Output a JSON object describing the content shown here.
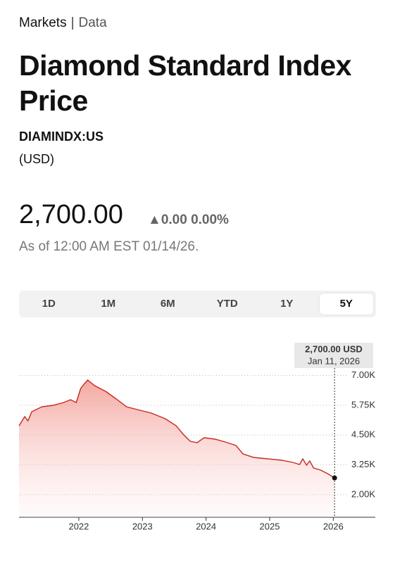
{
  "breadcrumb": [
    "Markets",
    "Data"
  ],
  "title": "Diamond Standard Index Price",
  "ticker": "DIAMINDX:US",
  "currency": "(USD)",
  "price": "2,700.00",
  "change": "0.00",
  "change_percent": "0.00%",
  "as_of": "As of 12:00 AM EST 01/14/26.",
  "tabs": [
    "1D",
    "1M",
    "6M",
    "YTD",
    "1Y",
    "5Y"
  ],
  "selected_tab": "5Y",
  "chart_data": {
    "type": "line",
    "tooltip": {
      "value": "2,700.00 USD",
      "date": "Jan 11, 2026"
    },
    "x": [
      2021.06,
      2021.15,
      2021.2,
      2021.26,
      2021.42,
      2021.59,
      2021.76,
      2021.87,
      2021.96,
      2022.03,
      2022.09,
      2022.14,
      2022.18,
      2022.25,
      2022.42,
      2022.59,
      2022.75,
      2022.92,
      2023.14,
      2023.36,
      2023.53,
      2023.64,
      2023.75,
      2023.86,
      2023.97,
      2024.14,
      2024.3,
      2024.47,
      2024.58,
      2024.75,
      2024.97,
      2025.19,
      2025.36,
      2025.47,
      2025.52,
      2025.58,
      2025.63,
      2025.69,
      2025.8,
      2025.91,
      2026.02
    ],
    "series": [
      {
        "color": "#c8281e",
        "values": [
          4889,
          5273,
          5096,
          5480,
          5687,
          5746,
          5864,
          5982,
          5864,
          6455,
          6661,
          6809,
          6720,
          6573,
          6336,
          6012,
          5687,
          5569,
          5421,
          5185,
          4889,
          4535,
          4240,
          4181,
          4387,
          4328,
          4210,
          4062,
          3708,
          3560,
          3501,
          3442,
          3354,
          3265,
          3501,
          3236,
          3412,
          3117,
          3029,
          2881,
          2700
        ]
      }
    ],
    "xlim": [
      2021.06,
      2026.66
    ],
    "xticks": [
      2022,
      2023,
      2024,
      2025,
      2026
    ],
    "ylim": [
      1050,
      7400
    ],
    "yticks": [
      {
        "value": 7000,
        "label": "7.00K"
      },
      {
        "value": 5750,
        "label": "5.75K"
      },
      {
        "value": 4500,
        "label": "4.50K"
      },
      {
        "value": 3250,
        "label": "3.25K"
      },
      {
        "value": 2000,
        "label": "2.00K"
      }
    ],
    "grid": true
  }
}
